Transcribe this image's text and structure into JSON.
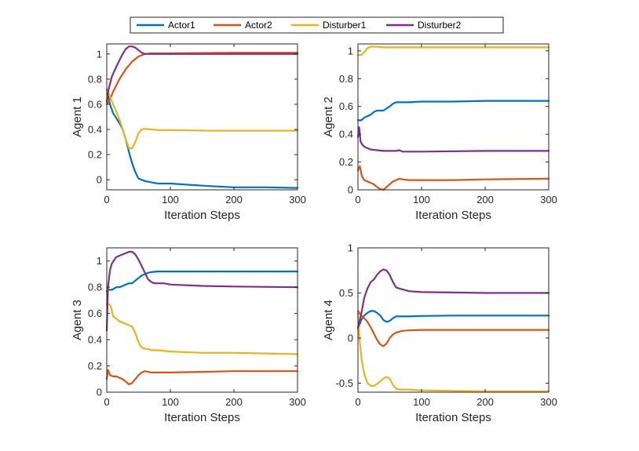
{
  "legend": {
    "entries": [
      {
        "name": "Actor1",
        "color": "#0072BD"
      },
      {
        "name": "Actor2",
        "color": "#D95319"
      },
      {
        "name": "Disturber1",
        "color": "#EDB120"
      },
      {
        "name": "Disturber2",
        "color": "#7E2F8E"
      }
    ],
    "placement": "top-center"
  },
  "chart_data": [
    {
      "type": "line",
      "title": "",
      "xlabel": "Iteration Steps",
      "ylabel": "Agent 1",
      "xlim": [
        0,
        300
      ],
      "ylim": [
        -0.08,
        1.08
      ],
      "xticks": [
        0,
        100,
        200,
        300
      ],
      "yticks": [
        0,
        0.2,
        0.4,
        0.6,
        0.8,
        1
      ],
      "series": [
        {
          "name": "Actor1",
          "x": [
            0,
            5,
            10,
            15,
            20,
            25,
            30,
            35,
            40,
            45,
            50,
            60,
            70,
            80,
            100,
            130,
            160,
            200,
            250,
            300
          ],
          "values": [
            0.72,
            0.6,
            0.53,
            0.49,
            0.45,
            0.4,
            0.32,
            0.22,
            0.13,
            0.06,
            0.01,
            -0.01,
            -0.02,
            -0.03,
            -0.03,
            -0.04,
            -0.05,
            -0.06,
            -0.06,
            -0.065
          ]
        },
        {
          "name": "Actor2",
          "x": [
            0,
            5,
            10,
            20,
            30,
            40,
            50,
            60,
            70,
            100,
            200,
            300
          ],
          "values": [
            0.6,
            0.64,
            0.7,
            0.8,
            0.88,
            0.94,
            0.98,
            1.0,
            1.005,
            1.005,
            1.01,
            1.01
          ]
        },
        {
          "name": "Disturber1",
          "x": [
            0,
            5,
            10,
            15,
            20,
            25,
            30,
            35,
            40,
            45,
            50,
            55,
            60,
            70,
            80,
            100,
            160,
            200,
            300
          ],
          "values": [
            0.72,
            0.66,
            0.6,
            0.54,
            0.48,
            0.4,
            0.32,
            0.25,
            0.25,
            0.3,
            0.37,
            0.4,
            0.405,
            0.4,
            0.395,
            0.395,
            0.39,
            0.39,
            0.39
          ]
        },
        {
          "name": "Disturber2",
          "x": [
            0,
            3,
            8,
            15,
            20,
            25,
            30,
            35,
            40,
            45,
            50,
            55,
            60,
            65,
            70,
            80,
            100,
            200,
            300
          ],
          "values": [
            0.62,
            0.72,
            0.82,
            0.9,
            0.95,
            1.0,
            1.04,
            1.06,
            1.06,
            1.05,
            1.03,
            1.01,
            1.0,
            1.0,
            1.0,
            1.0,
            1.0,
            1.0,
            1.0
          ]
        }
      ]
    },
    {
      "type": "line",
      "title": "",
      "xlabel": "Iteration Steps",
      "ylabel": "Agent 2",
      "xlim": [
        0,
        300
      ],
      "ylim": [
        0,
        1.05
      ],
      "xticks": [
        0,
        100,
        200,
        300
      ],
      "yticks": [
        0,
        0.2,
        0.4,
        0.6,
        0.8,
        1
      ],
      "series": [
        {
          "name": "Actor1",
          "x": [
            0,
            5,
            10,
            15,
            20,
            25,
            30,
            40,
            50,
            55,
            60,
            70,
            80,
            100,
            150,
            200,
            250,
            300
          ],
          "values": [
            0.5,
            0.5,
            0.52,
            0.53,
            0.54,
            0.56,
            0.57,
            0.57,
            0.6,
            0.62,
            0.63,
            0.63,
            0.63,
            0.635,
            0.635,
            0.64,
            0.64,
            0.64
          ]
        },
        {
          "name": "Actor2",
          "x": [
            0,
            3,
            6,
            10,
            15,
            20,
            25,
            30,
            35,
            40,
            45,
            50,
            55,
            60,
            65,
            70,
            80,
            100,
            150,
            200,
            300
          ],
          "values": [
            0.14,
            0.17,
            0.1,
            0.07,
            0.06,
            0.05,
            0.04,
            0.02,
            0.005,
            0.0,
            0.02,
            0.04,
            0.06,
            0.07,
            0.08,
            0.075,
            0.07,
            0.07,
            0.07,
            0.075,
            0.08
          ]
        },
        {
          "name": "Disturber1",
          "x": [
            0,
            5,
            10,
            15,
            20,
            25,
            30,
            40,
            60,
            100,
            200,
            300
          ],
          "values": [
            0.97,
            0.97,
            0.99,
            1.02,
            1.03,
            1.03,
            1.03,
            1.025,
            1.025,
            1.025,
            1.025,
            1.025
          ]
        },
        {
          "name": "Disturber2",
          "x": [
            0,
            2,
            4,
            6,
            10,
            15,
            20,
            30,
            40,
            50,
            60,
            65,
            70,
            80,
            100,
            200,
            300
          ],
          "values": [
            0.38,
            0.45,
            0.35,
            0.33,
            0.31,
            0.3,
            0.29,
            0.285,
            0.28,
            0.28,
            0.28,
            0.285,
            0.275,
            0.275,
            0.275,
            0.28,
            0.28
          ]
        }
      ]
    },
    {
      "type": "line",
      "title": "",
      "xlabel": "Iteration Steps",
      "ylabel": "Agent 3",
      "xlim": [
        0,
        300
      ],
      "ylim": [
        0,
        1.1
      ],
      "xticks": [
        0,
        100,
        200,
        300
      ],
      "yticks": [
        0,
        0.2,
        0.4,
        0.6,
        0.8,
        1
      ],
      "series": [
        {
          "name": "Actor1",
          "x": [
            0,
            3,
            8,
            15,
            20,
            25,
            30,
            35,
            40,
            45,
            50,
            55,
            60,
            65,
            70,
            80,
            100,
            150,
            200,
            300
          ],
          "values": [
            0.77,
            0.78,
            0.78,
            0.8,
            0.8,
            0.81,
            0.82,
            0.83,
            0.83,
            0.85,
            0.87,
            0.89,
            0.9,
            0.91,
            0.915,
            0.92,
            0.92,
            0.92,
            0.92,
            0.92
          ]
        },
        {
          "name": "Actor2",
          "x": [
            0,
            2,
            5,
            10,
            15,
            20,
            25,
            30,
            35,
            40,
            45,
            50,
            55,
            60,
            70,
            80,
            100,
            150,
            200,
            300
          ],
          "values": [
            0.1,
            0.17,
            0.13,
            0.12,
            0.12,
            0.11,
            0.1,
            0.08,
            0.06,
            0.07,
            0.1,
            0.13,
            0.15,
            0.16,
            0.15,
            0.15,
            0.15,
            0.155,
            0.16,
            0.16
          ]
        },
        {
          "name": "Disturber1",
          "x": [
            0,
            3,
            6,
            10,
            15,
            20,
            25,
            30,
            35,
            40,
            45,
            50,
            55,
            60,
            65,
            70,
            80,
            100,
            150,
            200,
            300
          ],
          "values": [
            0.67,
            0.67,
            0.66,
            0.58,
            0.56,
            0.54,
            0.53,
            0.52,
            0.51,
            0.5,
            0.45,
            0.38,
            0.34,
            0.33,
            0.33,
            0.32,
            0.32,
            0.31,
            0.3,
            0.3,
            0.29
          ]
        },
        {
          "name": "Disturber2",
          "x": [
            0,
            2,
            5,
            8,
            12,
            15,
            20,
            25,
            30,
            35,
            40,
            45,
            50,
            55,
            60,
            65,
            70,
            75,
            80,
            90,
            100,
            150,
            200,
            300
          ],
          "values": [
            0.47,
            0.8,
            0.93,
            0.98,
            1.01,
            1.03,
            1.04,
            1.05,
            1.06,
            1.07,
            1.07,
            1.05,
            1.01,
            0.96,
            0.91,
            0.86,
            0.84,
            0.83,
            0.83,
            0.83,
            0.82,
            0.81,
            0.805,
            0.8
          ]
        }
      ]
    },
    {
      "type": "line",
      "title": "",
      "xlabel": "Iteration Steps",
      "ylabel": "Agent 4",
      "xlim": [
        0,
        300
      ],
      "ylim": [
        -0.6,
        1.0
      ],
      "xticks": [
        0,
        100,
        200,
        300
      ],
      "yticks": [
        -0.5,
        0,
        0.5,
        1
      ],
      "yticklabels": [
        "-0.5",
        "0",
        "0.5",
        "1"
      ],
      "series": [
        {
          "name": "Actor1",
          "x": [
            0,
            5,
            10,
            15,
            20,
            25,
            30,
            35,
            40,
            45,
            50,
            55,
            60,
            70,
            80,
            100,
            150,
            200,
            300
          ],
          "values": [
            0.1,
            0.2,
            0.25,
            0.28,
            0.3,
            0.3,
            0.28,
            0.25,
            0.2,
            0.18,
            0.19,
            0.22,
            0.24,
            0.24,
            0.24,
            0.245,
            0.25,
            0.25,
            0.25
          ]
        },
        {
          "name": "Actor2",
          "x": [
            0,
            5,
            10,
            15,
            20,
            25,
            30,
            35,
            40,
            45,
            50,
            55,
            60,
            65,
            70,
            80,
            100,
            150,
            200,
            300
          ],
          "values": [
            0.3,
            0.25,
            0.22,
            0.18,
            0.12,
            0.05,
            -0.02,
            -0.07,
            -0.09,
            -0.06,
            0.0,
            0.04,
            0.06,
            0.07,
            0.08,
            0.085,
            0.09,
            0.09,
            0.09,
            0.09
          ]
        },
        {
          "name": "Disturber1",
          "x": [
            0,
            3,
            6,
            10,
            15,
            20,
            25,
            30,
            35,
            40,
            45,
            50,
            55,
            60,
            65,
            70,
            80,
            100,
            150,
            200,
            300
          ],
          "values": [
            0.28,
            -0.05,
            -0.25,
            -0.4,
            -0.5,
            -0.53,
            -0.53,
            -0.51,
            -0.48,
            -0.45,
            -0.43,
            -0.45,
            -0.52,
            -0.56,
            -0.57,
            -0.57,
            -0.57,
            -0.58,
            -0.585,
            -0.59,
            -0.59
          ]
        },
        {
          "name": "Disturber2",
          "x": [
            0,
            3,
            6,
            10,
            15,
            20,
            25,
            30,
            35,
            40,
            45,
            50,
            55,
            60,
            65,
            70,
            80,
            100,
            150,
            200,
            300
          ],
          "values": [
            0.12,
            0.2,
            0.3,
            0.45,
            0.55,
            0.62,
            0.65,
            0.7,
            0.74,
            0.76,
            0.75,
            0.7,
            0.62,
            0.56,
            0.55,
            0.54,
            0.52,
            0.51,
            0.505,
            0.5,
            0.5
          ]
        }
      ]
    }
  ]
}
